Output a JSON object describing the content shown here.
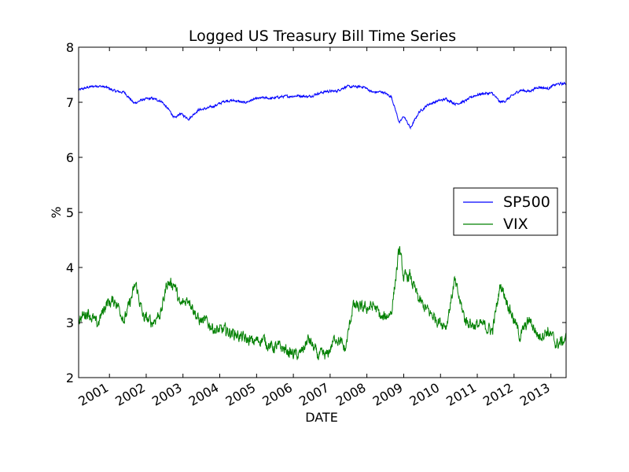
{
  "chart_data": {
    "type": "line",
    "title": "Logged US Treasury Bill Time Series",
    "xlabel": "DATE",
    "ylabel": "%",
    "xlim": [
      "2000-03-01",
      "2013-06-01"
    ],
    "ylim": [
      2,
      8
    ],
    "y_ticks": [
      "2",
      "3",
      "4",
      "5",
      "6",
      "7",
      "8"
    ],
    "x_ticks": [
      "2001",
      "2002",
      "2003",
      "2004",
      "2005",
      "2006",
      "2007",
      "2008",
      "2009",
      "2010",
      "2011",
      "2012",
      "2013"
    ],
    "legend_position": "center-right",
    "grid": false,
    "series": [
      {
        "name": "SP500",
        "color": "#0000ff",
        "points": [
          [
            "2000-03-01",
            7.22
          ],
          [
            "2000-06-01",
            7.27
          ],
          [
            "2000-09-01",
            7.3
          ],
          [
            "2000-12-01",
            7.27
          ],
          [
            "2001-03-01",
            7.2
          ],
          [
            "2001-06-01",
            7.18
          ],
          [
            "2001-09-01",
            6.98
          ],
          [
            "2001-12-01",
            7.05
          ],
          [
            "2002-03-01",
            7.07
          ],
          [
            "2002-06-01",
            7.02
          ],
          [
            "2002-09-01",
            6.82
          ],
          [
            "2002-10-15",
            6.7
          ],
          [
            "2002-12-01",
            6.8
          ],
          [
            "2003-03-01",
            6.7
          ],
          [
            "2003-06-01",
            6.86
          ],
          [
            "2003-09-01",
            6.89
          ],
          [
            "2003-12-01",
            6.95
          ],
          [
            "2004-03-01",
            7.03
          ],
          [
            "2004-06-01",
            7.03
          ],
          [
            "2004-09-01",
            6.99
          ],
          [
            "2004-12-01",
            7.05
          ],
          [
            "2005-03-01",
            7.08
          ],
          [
            "2005-06-01",
            7.07
          ],
          [
            "2005-09-01",
            7.1
          ],
          [
            "2005-12-01",
            7.11
          ],
          [
            "2006-03-01",
            7.12
          ],
          [
            "2006-06-01",
            7.1
          ],
          [
            "2006-09-01",
            7.16
          ],
          [
            "2006-12-01",
            7.2
          ],
          [
            "2007-03-01",
            7.2
          ],
          [
            "2007-06-01",
            7.28
          ],
          [
            "2007-09-01",
            7.28
          ],
          [
            "2007-12-01",
            7.28
          ],
          [
            "2008-03-01",
            7.18
          ],
          [
            "2008-06-01",
            7.19
          ],
          [
            "2008-09-01",
            7.1
          ],
          [
            "2008-11-20",
            6.62
          ],
          [
            "2009-01-01",
            6.75
          ],
          [
            "2009-03-09",
            6.53
          ],
          [
            "2009-06-01",
            6.82
          ],
          [
            "2009-09-01",
            6.96
          ],
          [
            "2009-12-01",
            7.02
          ],
          [
            "2010-03-01",
            7.06
          ],
          [
            "2010-06-01",
            6.97
          ],
          [
            "2010-09-01",
            7.02
          ],
          [
            "2010-12-01",
            7.12
          ],
          [
            "2011-03-01",
            7.16
          ],
          [
            "2011-06-01",
            7.16
          ],
          [
            "2011-08-15",
            7.0
          ],
          [
            "2011-10-01",
            7.02
          ],
          [
            "2011-12-01",
            7.1
          ],
          [
            "2012-03-01",
            7.22
          ],
          [
            "2012-06-01",
            7.2
          ],
          [
            "2012-09-01",
            7.28
          ],
          [
            "2012-12-01",
            7.25
          ],
          [
            "2013-03-01",
            7.33
          ],
          [
            "2013-06-01",
            7.34
          ]
        ]
      },
      {
        "name": "VIX",
        "color": "#008000",
        "points": [
          [
            "2000-03-01",
            3.05
          ],
          [
            "2000-06-01",
            3.2
          ],
          [
            "2000-09-01",
            2.95
          ],
          [
            "2000-12-01",
            3.35
          ],
          [
            "2001-03-01",
            3.4
          ],
          [
            "2001-06-01",
            3.05
          ],
          [
            "2001-09-20",
            3.7
          ],
          [
            "2001-12-01",
            3.1
          ],
          [
            "2002-03-01",
            3.0
          ],
          [
            "2002-06-01",
            3.2
          ],
          [
            "2002-07-25",
            3.72
          ],
          [
            "2002-10-10",
            3.7
          ],
          [
            "2002-12-01",
            3.3
          ],
          [
            "2003-03-01",
            3.45
          ],
          [
            "2003-06-01",
            3.05
          ],
          [
            "2003-09-01",
            3.0
          ],
          [
            "2003-12-01",
            2.85
          ],
          [
            "2004-03-01",
            2.85
          ],
          [
            "2004-06-01",
            2.8
          ],
          [
            "2004-09-01",
            2.7
          ],
          [
            "2004-12-01",
            2.65
          ],
          [
            "2005-03-01",
            2.7
          ],
          [
            "2005-06-01",
            2.55
          ],
          [
            "2005-09-01",
            2.55
          ],
          [
            "2005-12-01",
            2.45
          ],
          [
            "2006-03-01",
            2.4
          ],
          [
            "2006-06-01",
            2.7
          ],
          [
            "2006-09-01",
            2.4
          ],
          [
            "2006-12-01",
            2.4
          ],
          [
            "2007-03-01",
            2.75
          ],
          [
            "2007-06-01",
            2.5
          ],
          [
            "2007-08-15",
            3.3
          ],
          [
            "2007-11-20",
            3.25
          ],
          [
            "2008-03-15",
            3.3
          ],
          [
            "2008-06-01",
            3.05
          ],
          [
            "2008-09-01",
            3.2
          ],
          [
            "2008-11-20",
            4.35
          ],
          [
            "2009-01-01",
            3.8
          ],
          [
            "2009-03-01",
            3.85
          ],
          [
            "2009-06-01",
            3.4
          ],
          [
            "2009-09-01",
            3.2
          ],
          [
            "2009-12-01",
            3.05
          ],
          [
            "2010-03-01",
            2.95
          ],
          [
            "2010-05-20",
            3.75
          ],
          [
            "2010-09-01",
            3.05
          ],
          [
            "2010-12-01",
            2.95
          ],
          [
            "2011-03-01",
            2.95
          ],
          [
            "2011-06-01",
            2.85
          ],
          [
            "2011-08-20",
            3.7
          ],
          [
            "2011-10-01",
            3.5
          ],
          [
            "2011-12-01",
            3.2
          ],
          [
            "2012-03-01",
            2.75
          ],
          [
            "2012-06-01",
            3.05
          ],
          [
            "2012-09-01",
            2.75
          ],
          [
            "2012-12-01",
            2.85
          ],
          [
            "2013-03-01",
            2.6
          ],
          [
            "2013-06-01",
            2.7
          ]
        ]
      }
    ]
  }
}
